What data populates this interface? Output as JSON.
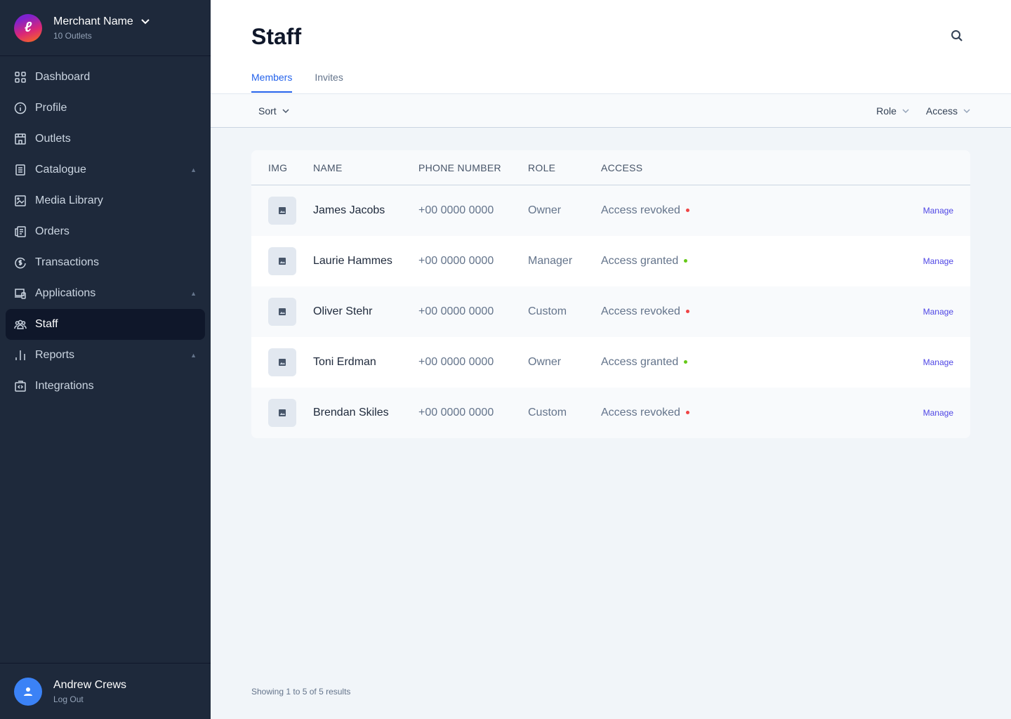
{
  "merchant": {
    "logo_letter": "ℓ",
    "name": "Merchant Name",
    "subtitle": "10 Outlets"
  },
  "nav": [
    {
      "label": "Dashboard",
      "icon": "grid-icon"
    },
    {
      "label": "Profile",
      "icon": "info-icon"
    },
    {
      "label": "Outlets",
      "icon": "store-icon"
    },
    {
      "label": "Catalogue",
      "icon": "list-icon",
      "expandable": true
    },
    {
      "label": "Media Library",
      "icon": "image-icon"
    },
    {
      "label": "Orders",
      "icon": "receipt-icon"
    },
    {
      "label": "Transactions",
      "icon": "dollar-cycle-icon"
    },
    {
      "label": "Applications",
      "icon": "devices-icon",
      "expandable": true
    },
    {
      "label": "Staff",
      "icon": "users-icon",
      "active": true
    },
    {
      "label": "Reports",
      "icon": "bar-chart-icon",
      "expandable": true
    },
    {
      "label": "Integrations",
      "icon": "code-icon"
    }
  ],
  "user": {
    "name": "Andrew Crews",
    "logout": "Log Out"
  },
  "page": {
    "title": "Staff",
    "tabs": [
      "Members",
      "Invites"
    ],
    "active_tab": 0
  },
  "filters": {
    "sort": "Sort",
    "role": "Role",
    "access": "Access"
  },
  "table": {
    "headers": [
      "IMG",
      "NAME",
      "PHONE NUMBER",
      "ROLE",
      "ACCESS"
    ],
    "rows": [
      {
        "name": "James Jacobs",
        "phone": "+00 0000 0000",
        "role": "Owner",
        "access": "Access revoked",
        "status": "revoked",
        "action": "Manage"
      },
      {
        "name": "Laurie Hammes",
        "phone": "+00 0000 0000",
        "role": "Manager",
        "access": "Access granted",
        "status": "granted",
        "action": "Manage"
      },
      {
        "name": "Oliver Stehr",
        "phone": "+00 0000 0000",
        "role": "Custom",
        "access": "Access revoked",
        "status": "revoked",
        "action": "Manage"
      },
      {
        "name": "Toni Erdman",
        "phone": "+00 0000 0000",
        "role": "Owner",
        "access": "Access granted",
        "status": "granted",
        "action": "Manage"
      },
      {
        "name": "Brendan Skiles",
        "phone": "+00 0000 0000",
        "role": "Custom",
        "access": "Access revoked",
        "status": "revoked",
        "action": "Manage"
      }
    ]
  },
  "footer": "Showing 1 to 5 of 5 results",
  "colors": {
    "sidebar": "#1e293b",
    "accent": "#2563eb",
    "revoked": "#ef4444",
    "granted": "#65c918",
    "link": "#4f46e5"
  }
}
